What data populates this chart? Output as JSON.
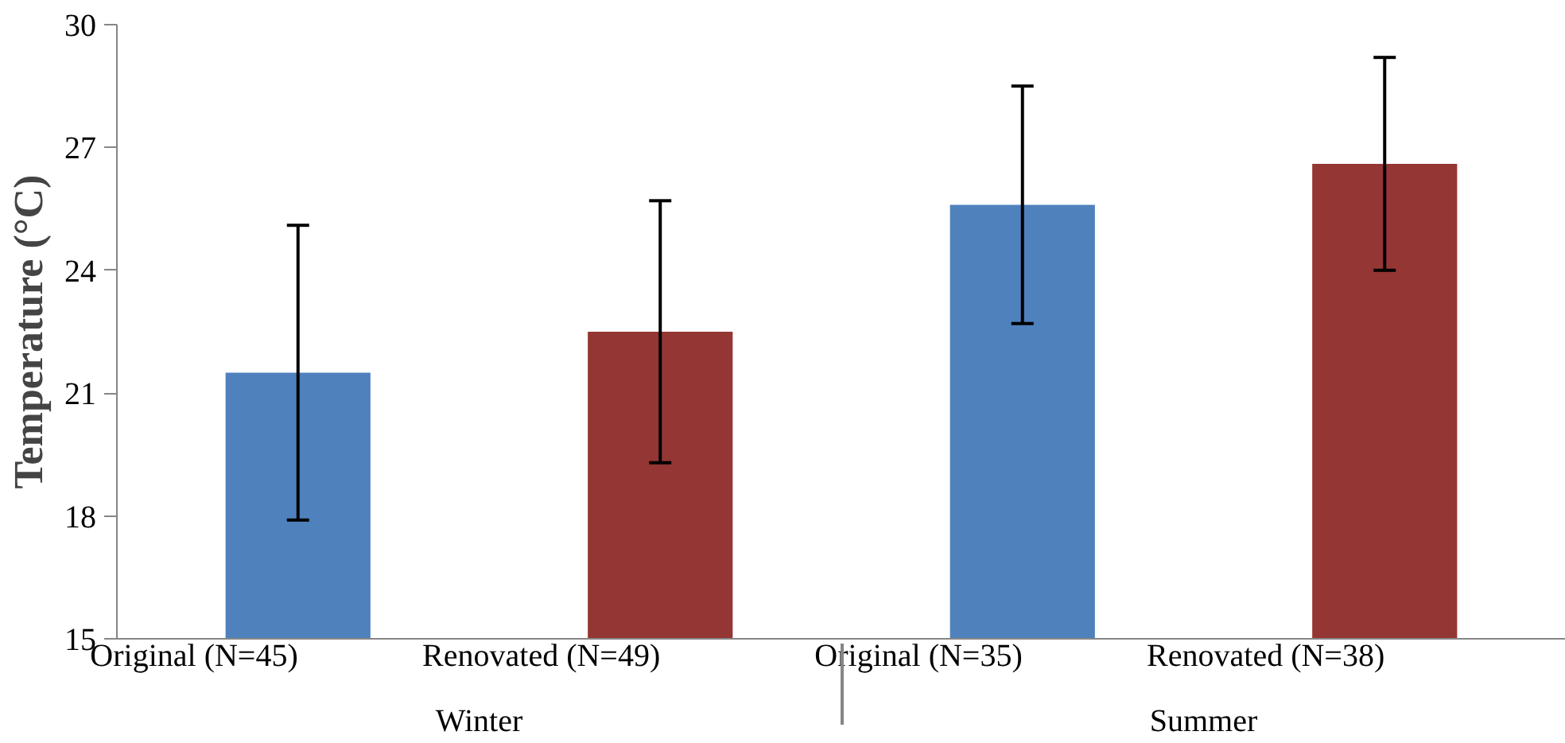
{
  "chart_data": {
    "type": "bar",
    "ylabel": "Temperature (°C)",
    "categories": [
      "Original (N=45)",
      "Renovated (N=49)",
      "Original (N=35)",
      "Renovated (N=38)"
    ],
    "values": [
      21.5,
      22.5,
      25.6,
      26.6
    ],
    "errors": [
      3.6,
      3.2,
      2.9,
      2.6
    ],
    "colors": [
      "#4f81bd",
      "#943634",
      "#4f81bd",
      "#943634"
    ],
    "annotations": [
      "Winter",
      "Summer"
    ],
    "ylim": [
      15,
      30
    ],
    "yticks": [
      15,
      18,
      21,
      24,
      27,
      30
    ],
    "grid": false
  }
}
